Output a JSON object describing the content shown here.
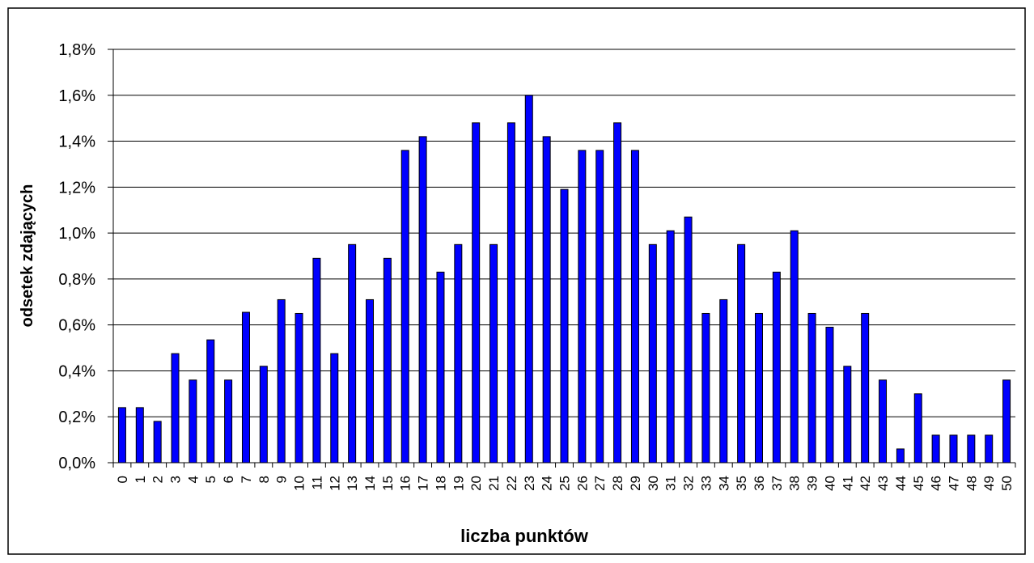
{
  "chart_data": {
    "type": "bar",
    "x_label": "liczba punktów",
    "y_label": "odsetek zdających",
    "categories": [
      "0",
      "1",
      "2",
      "3",
      "4",
      "5",
      "6",
      "7",
      "8",
      "9",
      "10",
      "11",
      "12",
      "13",
      "14",
      "15",
      "16",
      "17",
      "18",
      "19",
      "20",
      "21",
      "22",
      "23",
      "24",
      "25",
      "26",
      "27",
      "28",
      "29",
      "30",
      "31",
      "32",
      "33",
      "34",
      "35",
      "36",
      "37",
      "38",
      "39",
      "40",
      "41",
      "42",
      "43",
      "44",
      "45",
      "46",
      "47",
      "48",
      "49",
      "50"
    ],
    "values": [
      0.24,
      0.24,
      0.18,
      0.475,
      0.36,
      0.535,
      0.36,
      0.655,
      0.42,
      0.71,
      0.65,
      0.89,
      0.475,
      0.95,
      0.71,
      0.89,
      1.36,
      1.42,
      0.83,
      0.95,
      1.48,
      0.95,
      1.48,
      1.6,
      1.42,
      1.19,
      1.36,
      1.36,
      1.48,
      1.36,
      0.95,
      1.01,
      1.07,
      0.65,
      0.71,
      0.95,
      0.65,
      0.83,
      1.01,
      0.65,
      0.59,
      0.42,
      0.65,
      0.36,
      0.06,
      0.3,
      0.12,
      0.12,
      0.12,
      0.12,
      0.36
    ],
    "color": "#0000ff",
    "ylim": [
      0,
      1.8
    ],
    "yticks": [
      {
        "value": 0,
        "label": "0,0%"
      },
      {
        "value": 0.2,
        "label": "0,2%"
      },
      {
        "value": 0.4,
        "label": "0,4%"
      },
      {
        "value": 0.6,
        "label": "0,6%"
      },
      {
        "value": 0.8,
        "label": "0,8%"
      },
      {
        "value": 1.0,
        "label": "1,0%"
      },
      {
        "value": 1.2,
        "label": "1,2%"
      },
      {
        "value": 1.4,
        "label": "1,4%"
      },
      {
        "value": 1.6,
        "label": "1,6%"
      },
      {
        "value": 1.8,
        "label": "1,8%"
      }
    ],
    "grid": true
  }
}
